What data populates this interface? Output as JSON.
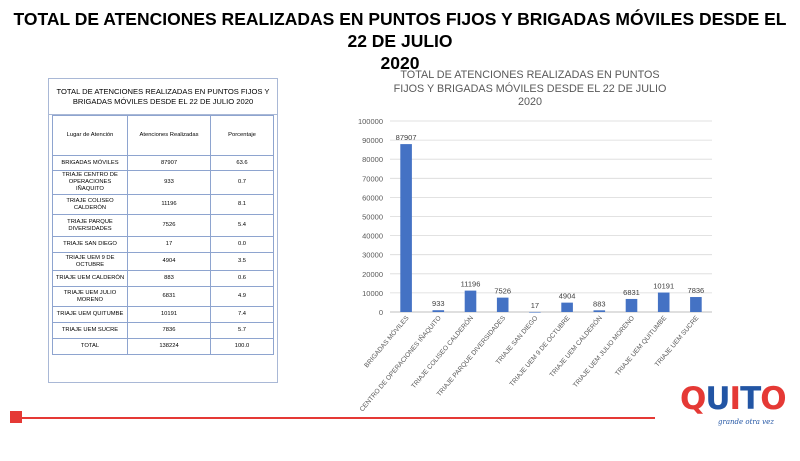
{
  "slide": {
    "title_line1": "TOTAL DE ATENCIONES REALIZADAS EN PUNTOS FIJOS Y BRIGADAS MÓVILES DESDE EL 22 DE JULIO",
    "title_line2": "2020"
  },
  "table": {
    "caption": "TOTAL DE ATENCIONES  REALIZADAS  EN  PUNTOS  FIJOS Y  BRIGADAS  MÓVILES  DESDE  EL  22  DE  JULIO  2020",
    "headers": [
      "Lugar de Atención",
      "Atenciones Realizadas",
      "Porcentaje"
    ],
    "rows": [
      [
        "BRIGADAS MÓVILES",
        "87907",
        "63.6"
      ],
      [
        "TRIAJE  CENTRO DE  OPERACIONES IÑAQUITO",
        "933",
        "0.7"
      ],
      [
        "TRIAJE  COLISEO CALDERÓN",
        "11196",
        "8.1"
      ],
      [
        "TRIAJE  PARQUE DIVERSIDADES",
        "7526",
        "5.4"
      ],
      [
        "TRIAJE   SAN DIEGO",
        "17",
        "0.0"
      ],
      [
        "TRIAJE  UEM  9 DE OCTUBRE",
        "4904",
        "3.5"
      ],
      [
        "TRIAJE  UEM CALDERÓN",
        "883",
        "0.6"
      ],
      [
        "TRIAJE  UEM  JULIO MORENO",
        "6831",
        "4.9"
      ],
      [
        "TRIAJE  UEM QUITUMBE",
        "10191",
        "7.4"
      ],
      [
        "TRIAJE  UEM SUCRE",
        "7836",
        "5.7"
      ],
      [
        "TOTAL",
        "138224",
        "100.0"
      ]
    ]
  },
  "chart_data": {
    "type": "bar",
    "title": "TOTAL DE ATENCIONES REALIZADAS EN PUNTOS FIJOS Y BRIGADAS MÓVILES DESDE EL 22 DE JULIO 2020",
    "categories": [
      "BRIGADAS MÓVILES",
      "CENTRO DE OPERACIONES IÑAQUITO",
      "TRIAJE COLISEO CALDERÓN",
      "TRIAJE PARQUE DIVERSIDADES",
      "TRIAJE SAN DIEGO",
      "TRIAJE UEM 9 DE OCTUBRE",
      "TRIAJE UEM CALDERÓN",
      "TRIAJE UEM JULIO MORENO",
      "TRIAJE UEM QUITUMBE",
      "TRIAJE UEM SUCRE"
    ],
    "values": [
      87907,
      933,
      11196,
      7526,
      17,
      4904,
      883,
      6831,
      10191,
      7836
    ],
    "ylim": [
      0,
      100000
    ],
    "yticks": [
      0,
      10000,
      20000,
      30000,
      40000,
      50000,
      60000,
      70000,
      80000,
      90000,
      100000
    ],
    "grid": true,
    "bar_color": "#4472c4"
  },
  "logo": {
    "text": "QUITO",
    "tagline": "grande otra vez"
  }
}
